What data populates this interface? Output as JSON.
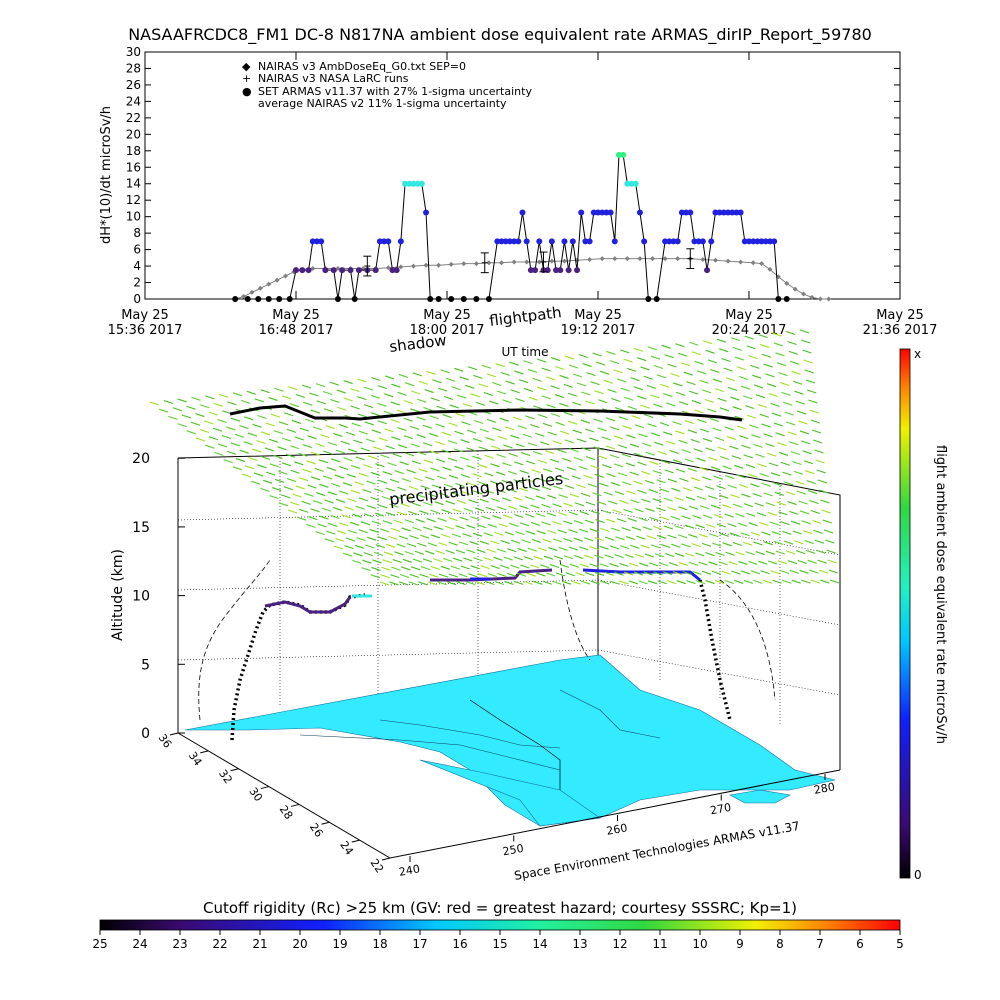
{
  "title": "NASAAFRCDC8_FM1 DC-8   N817NA ambient dose equivalent rate ARMAS_dirIP_Report_59780",
  "colors": {
    "nairas_v3": "#808080",
    "armas": "#2020e0",
    "armas_high": "#30e8e0",
    "armas_peak": "#30f080",
    "armas_low": "#4a2080",
    "rc_band": "#48c020",
    "land": "#33eaff",
    "flightpath": "#000000"
  },
  "chart_data": [
    {
      "type": "scatter",
      "ylabel": "dH*(10)/dt microSv/h",
      "xlabel": "UT time",
      "ylim": [
        0,
        30
      ],
      "yticks": [
        0,
        2,
        4,
        6,
        8,
        10,
        12,
        14,
        16,
        18,
        20,
        22,
        24,
        26,
        28,
        30
      ],
      "xlim_minutes": [
        936,
        1296
      ],
      "xticks": [
        {
          "t": 936,
          "day": "May 25",
          "time": "15:36 2017"
        },
        {
          "t": 1008,
          "day": "May 25",
          "time": "16:48 2017"
        },
        {
          "t": 1080,
          "day": "May 25",
          "time": "18:00 2017"
        },
        {
          "t": 1152,
          "day": "May 25",
          "time": "19:12 2017"
        },
        {
          "t": 1224,
          "day": "May 25",
          "time": "20:24 2017"
        },
        {
          "t": 1296,
          "day": "May 25",
          "time": "21:36 2017"
        }
      ],
      "legend": [
        {
          "symbol": "◆",
          "label": "NAIRAS v3 AmbDoseEq_G0.txt SEP=0"
        },
        {
          "symbol": "+",
          "label": "NAIRAS v3 NASA LaRC runs"
        },
        {
          "symbol": "●",
          "label": "SET ARMAS v11.37 with 27% 1-sigma uncertainty"
        },
        {
          "symbol": "",
          "label": "average NAIRAS v2 11% 1-sigma uncertainty"
        }
      ],
      "series": [
        {
          "name": "NAIRAS v3 AmbDoseEq_G0.txt SEP=0",
          "points": [
            [
              979,
              0
            ],
            [
              983,
              0.3
            ],
            [
              987,
              0.8
            ],
            [
              991,
              1.3
            ],
            [
              995,
              1.8
            ],
            [
              999,
              2.3
            ],
            [
              1003,
              2.8
            ],
            [
              1007,
              3.3
            ],
            [
              1011,
              3.6
            ],
            [
              1016,
              3.7
            ],
            [
              1022,
              3.7
            ],
            [
              1028,
              3.7
            ],
            [
              1034,
              3.7
            ],
            [
              1040,
              3.7
            ],
            [
              1046,
              3.7
            ],
            [
              1052,
              3.8
            ],
            [
              1058,
              3.9
            ],
            [
              1064,
              4.0
            ],
            [
              1070,
              4.1
            ],
            [
              1076,
              4.1
            ],
            [
              1082,
              4.2
            ],
            [
              1088,
              4.3
            ],
            [
              1094,
              4.3
            ],
            [
              1100,
              4.4
            ],
            [
              1106,
              4.4
            ],
            [
              1112,
              4.5
            ],
            [
              1118,
              4.5
            ],
            [
              1124,
              4.5
            ],
            [
              1130,
              4.6
            ],
            [
              1136,
              4.6
            ],
            [
              1142,
              4.7
            ],
            [
              1148,
              4.8
            ],
            [
              1154,
              4.9
            ],
            [
              1160,
              4.9
            ],
            [
              1166,
              4.9
            ],
            [
              1172,
              4.9
            ],
            [
              1178,
              4.9
            ],
            [
              1184,
              4.9
            ],
            [
              1190,
              4.9
            ],
            [
              1196,
              4.9
            ],
            [
              1202,
              4.8
            ],
            [
              1208,
              4.7
            ],
            [
              1214,
              4.6
            ],
            [
              1220,
              4.5
            ],
            [
              1226,
              4.4
            ],
            [
              1230,
              4.3
            ],
            [
              1234,
              3.6
            ],
            [
              1238,
              2.7
            ],
            [
              1242,
              1.9
            ],
            [
              1246,
              1.2
            ],
            [
              1250,
              0.6
            ],
            [
              1254,
              0.2
            ],
            [
              1258,
              0
            ],
            [
              1262,
              0
            ]
          ]
        },
        {
          "name": "NAIRAS v3 NASA LaRC runs",
          "points": [
            [
              1042,
              4.0
            ],
            [
              1098,
              4.4
            ],
            [
              1126,
              4.5
            ],
            [
              1196,
              4.9
            ]
          ]
        },
        {
          "name": "SET ARMAS v11.37 with 27% 1-sigma uncertainty",
          "points": [
            [
              979,
              0
            ],
            [
              985,
              0
            ],
            [
              990,
              0
            ],
            [
              995,
              0
            ],
            [
              1000,
              0
            ],
            [
              1005,
              0
            ],
            [
              1008,
              3.5
            ],
            [
              1011,
              3.5
            ],
            [
              1014,
              3.5
            ],
            [
              1016,
              7
            ],
            [
              1018,
              7
            ],
            [
              1020,
              7
            ],
            [
              1022,
              3.5
            ],
            [
              1026,
              3.5
            ],
            [
              1028,
              0
            ],
            [
              1030,
              3.5
            ],
            [
              1034,
              3.5
            ],
            [
              1036,
              0
            ],
            [
              1038,
              3.5
            ],
            [
              1042,
              3.5
            ],
            [
              1046,
              3.5
            ],
            [
              1048,
              7
            ],
            [
              1050,
              7
            ],
            [
              1052,
              7
            ],
            [
              1054,
              3.5
            ],
            [
              1056,
              3.5
            ],
            [
              1058,
              7
            ],
            [
              1060,
              14
            ],
            [
              1062,
              14
            ],
            [
              1064,
              14
            ],
            [
              1066,
              14
            ],
            [
              1068,
              14
            ],
            [
              1070,
              10.5
            ],
            [
              1072,
              0
            ],
            [
              1076,
              0
            ],
            [
              1082,
              0
            ],
            [
              1088,
              0
            ],
            [
              1094,
              0
            ],
            [
              1100,
              0
            ],
            [
              1104,
              7
            ],
            [
              1106,
              7
            ],
            [
              1108,
              7
            ],
            [
              1110,
              7
            ],
            [
              1112,
              7
            ],
            [
              1114,
              7
            ],
            [
              1116,
              10.5
            ],
            [
              1118,
              7
            ],
            [
              1120,
              3.5
            ],
            [
              1122,
              3.5
            ],
            [
              1124,
              7
            ],
            [
              1126,
              3.5
            ],
            [
              1128,
              3.5
            ],
            [
              1130,
              7
            ],
            [
              1132,
              3.5
            ],
            [
              1134,
              3.5
            ],
            [
              1136,
              7
            ],
            [
              1138,
              3.5
            ],
            [
              1140,
              7
            ],
            [
              1142,
              3.5
            ],
            [
              1144,
              10.5
            ],
            [
              1146,
              7
            ],
            [
              1148,
              7
            ],
            [
              1150,
              10.5
            ],
            [
              1152,
              10.5
            ],
            [
              1154,
              10.5
            ],
            [
              1156,
              10.5
            ],
            [
              1158,
              10.5
            ],
            [
              1160,
              7
            ],
            [
              1162,
              17.5
            ],
            [
              1164,
              17.5
            ],
            [
              1166,
              14
            ],
            [
              1168,
              14
            ],
            [
              1170,
              14
            ],
            [
              1172,
              10.5
            ],
            [
              1174,
              7
            ],
            [
              1176,
              0
            ],
            [
              1180,
              0
            ],
            [
              1184,
              7
            ],
            [
              1186,
              7
            ],
            [
              1188,
              7
            ],
            [
              1190,
              7
            ],
            [
              1192,
              10.5
            ],
            [
              1194,
              10.5
            ],
            [
              1196,
              10.5
            ],
            [
              1198,
              7
            ],
            [
              1200,
              7
            ],
            [
              1202,
              7
            ],
            [
              1204,
              3.5
            ],
            [
              1206,
              7
            ],
            [
              1208,
              10.5
            ],
            [
              1210,
              10.5
            ],
            [
              1212,
              10.5
            ],
            [
              1214,
              10.5
            ],
            [
              1216,
              10.5
            ],
            [
              1218,
              10.5
            ],
            [
              1220,
              10.5
            ],
            [
              1222,
              7
            ],
            [
              1224,
              7
            ],
            [
              1226,
              7
            ],
            [
              1228,
              7
            ],
            [
              1230,
              7
            ],
            [
              1232,
              7
            ],
            [
              1234,
              7
            ],
            [
              1236,
              7
            ],
            [
              1238,
              0
            ],
            [
              1242,
              0
            ]
          ]
        }
      ]
    },
    {
      "type": "3d-scatter",
      "zlabel": "Altitude (km)",
      "zticks": [
        0,
        5,
        10,
        15,
        20
      ],
      "lat_ticks": [
        36,
        34,
        32,
        30,
        28,
        26,
        24,
        22
      ],
      "lon_ticks": [
        240,
        250,
        260,
        270,
        280
      ],
      "annotations": [
        "shadow",
        "flightpath",
        "precipitating particles"
      ],
      "credit": "Space Environment Technologies ARMAS v11.37"
    }
  ],
  "colorbars": {
    "dose": {
      "label": "flight ambient dose equivalent rate microSv/h",
      "top_label": "x",
      "bottom_label": "0"
    },
    "rc": {
      "label": "Cutoff rigidity (Rc) >25 km (GV: red = greatest hazard; courtesy SSSRC; Kp=1)",
      "ticks": [
        "25",
        "24",
        "23",
        "22",
        "21",
        "20",
        "19",
        "18",
        "17",
        "16",
        "15",
        "14",
        "13",
        "12",
        "11",
        "10",
        "9",
        "8",
        "7",
        "6",
        "5"
      ]
    }
  }
}
